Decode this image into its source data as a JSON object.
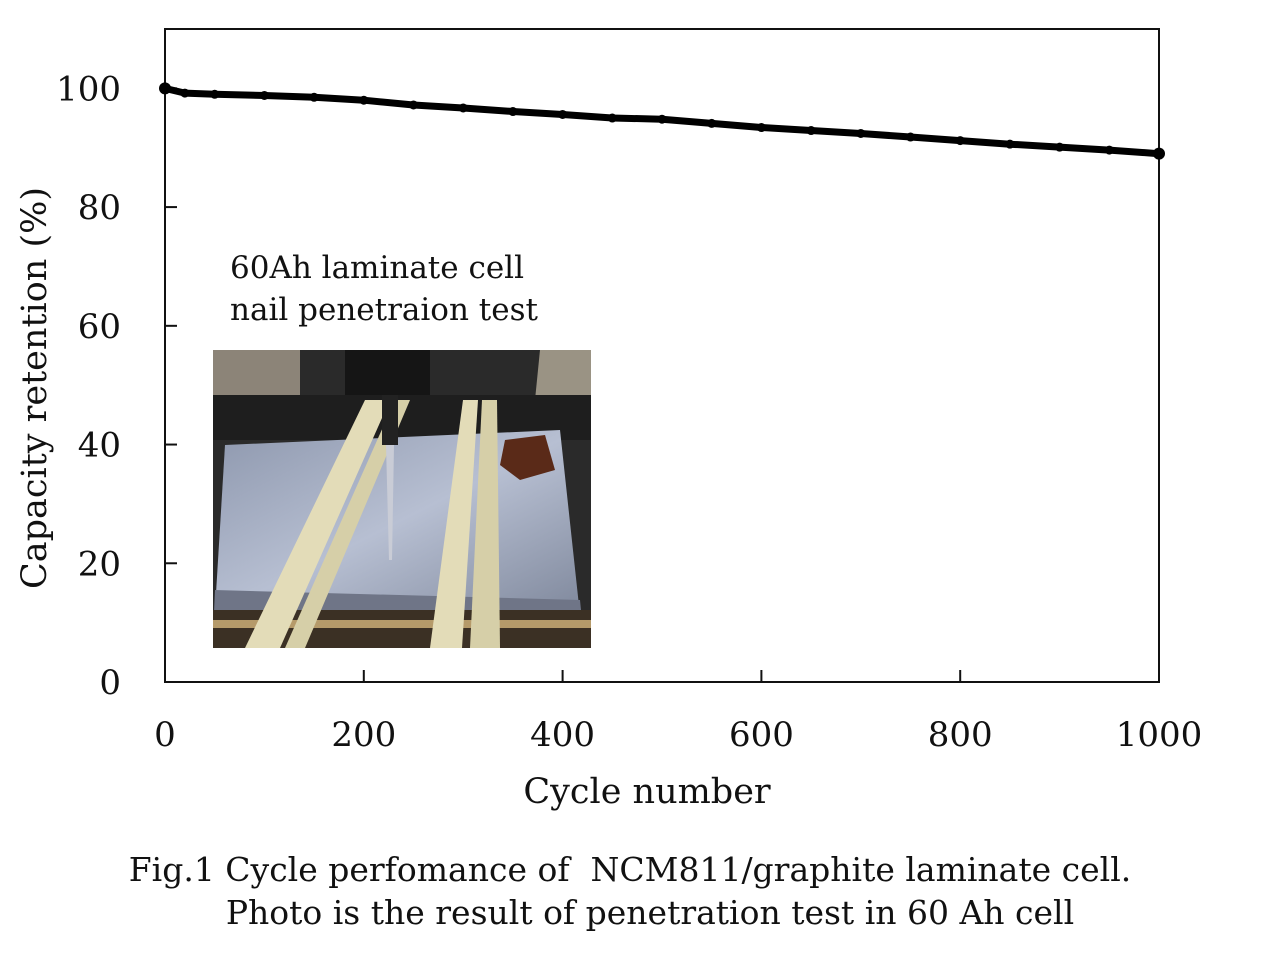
{
  "chart_data": {
    "type": "line",
    "xlabel": "Cycle number",
    "ylabel": "Capacity retention (%)",
    "xlim": [
      0,
      1000
    ],
    "ylim": [
      0,
      110
    ],
    "x_ticks": [
      0,
      200,
      400,
      600,
      800,
      1000
    ],
    "y_ticks": [
      0,
      20,
      40,
      60,
      80,
      100
    ],
    "grid": false,
    "series": [
      {
        "color": "#000000",
        "x": [
          0,
          20,
          50,
          100,
          150,
          200,
          250,
          300,
          350,
          400,
          450,
          500,
          550,
          600,
          650,
          700,
          750,
          800,
          850,
          900,
          950,
          1000
        ],
        "y": [
          100,
          99.2,
          99,
          98.8,
          98.5,
          98,
          97.2,
          96.7,
          96.1,
          95.6,
          95,
          94.8,
          94.1,
          93.4,
          92.9,
          92.4,
          91.8,
          91.2,
          90.6,
          90.1,
          89.6,
          89
        ]
      }
    ],
    "annotations": [
      "60Ah laminate cell",
      "nail penetraion test"
    ]
  },
  "photo": {
    "description_icon": "nail-penetration-photo"
  },
  "caption": {
    "line1": "Fig.1 Cycle perfomance of  NCM811/graphite laminate cell.",
    "line2": "Photo is the result of penetration test in 60 Ah cell"
  }
}
